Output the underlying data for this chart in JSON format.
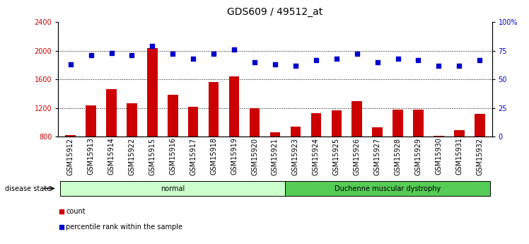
{
  "title": "GDS609 / 49512_at",
  "samples": [
    "GSM15912",
    "GSM15913",
    "GSM15914",
    "GSM15922",
    "GSM15915",
    "GSM15916",
    "GSM15917",
    "GSM15918",
    "GSM15919",
    "GSM15920",
    "GSM15921",
    "GSM15923",
    "GSM15924",
    "GSM15925",
    "GSM15926",
    "GSM15927",
    "GSM15928",
    "GSM15929",
    "GSM15930",
    "GSM15931",
    "GSM15932"
  ],
  "counts": [
    820,
    1240,
    1460,
    1270,
    2040,
    1380,
    1220,
    1560,
    1640,
    1200,
    860,
    940,
    1130,
    1170,
    1300,
    930,
    1180,
    1175,
    815,
    890,
    1120
  ],
  "percentiles": [
    63,
    71,
    73,
    71,
    79,
    72,
    68,
    72,
    76,
    65,
    63,
    62,
    67,
    68,
    72,
    65,
    68,
    67,
    62,
    62,
    67
  ],
  "bar_color": "#cc0000",
  "dot_color": "#0000cc",
  "ylim_left": [
    800,
    2400
  ],
  "ylim_right": [
    0,
    100
  ],
  "yticks_left": [
    800,
    1200,
    1600,
    2000,
    2400
  ],
  "yticks_right": [
    0,
    25,
    50,
    75,
    100
  ],
  "yticklabels_right": [
    "0",
    "25",
    "50",
    "75",
    "100%"
  ],
  "groups": [
    {
      "label": "normal",
      "start": 0,
      "end": 11,
      "color": "#ccffcc"
    },
    {
      "label": "Duchenne muscular dystrophy",
      "start": 11,
      "end": 21,
      "color": "#55cc55"
    }
  ],
  "disease_state_label": "disease state",
  "legend_items": [
    {
      "label": "count",
      "color": "#cc0000"
    },
    {
      "label": "percentile rank within the sample",
      "color": "#0000cc"
    }
  ],
  "grid_color": "#000000",
  "background_color": "#ffffff",
  "bar_width": 0.5,
  "tick_label_fontsize": 7,
  "title_fontsize": 10
}
